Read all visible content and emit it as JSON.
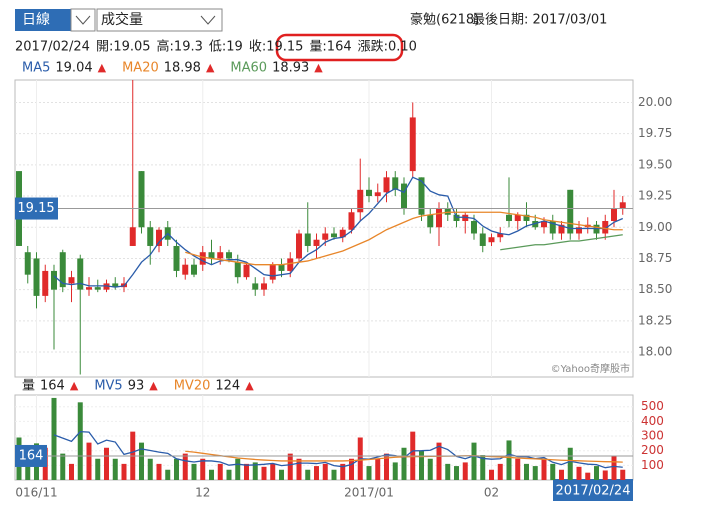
{
  "header": {
    "period": "日線",
    "indicator": "成交量",
    "stock": "豪勉(6218)",
    "last_date": "最後日期: 2017/03/01",
    "info": [
      "2017/02/24",
      "開:19.05",
      "高:19.3",
      "低:19",
      "收:19.15",
      "量:164",
      "漲跌:0.10"
    ],
    "watermark": "©Yahoo奇摩股市"
  },
  "chart_data": {
    "type": "candlestick",
    "trend_symbol": "▲",
    "up_color": "#e02a2a",
    "down_color": "#3a8a3a",
    "flat_color": "#777777",
    "categories": [
      null,
      null,
      "016/11",
      null,
      null,
      null,
      null,
      null,
      null,
      null,
      null,
      null,
      null,
      null,
      null,
      null,
      null,
      null,
      null,
      null,
      null,
      "12",
      null,
      null,
      null,
      null,
      null,
      null,
      null,
      null,
      null,
      null,
      null,
      null,
      null,
      null,
      null,
      null,
      null,
      null,
      "2017/01",
      null,
      null,
      null,
      null,
      null,
      null,
      null,
      null,
      null,
      null,
      null,
      null,
      null,
      "02",
      null,
      null,
      null,
      null,
      null,
      null,
      null,
      null,
      null,
      null,
      null,
      null,
      null,
      "2017/02/24",
      null
    ],
    "open": [
      19.45,
      18.8,
      18.75,
      18.45,
      18.65,
      18.8,
      18.55,
      18.75,
      18.5,
      18.52,
      18.5,
      18.55,
      18.52,
      18.85,
      19.45,
      19.0,
      18.85,
      19.0,
      18.85,
      18.62,
      18.7,
      18.7,
      18.8,
      18.75,
      18.8,
      18.72,
      18.6,
      18.55,
      18.5,
      18.58,
      18.7,
      18.65,
      18.75,
      18.95,
      18.85,
      18.9,
      18.95,
      18.92,
      18.98,
      19.12,
      19.3,
      19.25,
      19.28,
      19.4,
      19.35,
      19.45,
      19.4,
      19.1,
      19.0,
      19.15,
      19.1,
      19.05,
      19.05,
      18.95,
      18.88,
      18.92,
      19.1,
      19.05,
      19.1,
      19.05,
      19.0,
      19.05,
      18.95,
      19.3,
      18.95,
      19.0,
      19.02,
      18.95,
      19.05,
      19.15
    ],
    "high": [
      19.45,
      18.85,
      18.8,
      18.7,
      18.7,
      18.82,
      18.65,
      18.78,
      18.6,
      18.58,
      18.58,
      18.6,
      18.6,
      20.18,
      19.45,
      19.05,
      19.0,
      19.05,
      18.9,
      18.75,
      18.75,
      18.85,
      18.9,
      18.85,
      18.82,
      18.78,
      18.72,
      18.6,
      18.6,
      18.72,
      18.75,
      18.8,
      18.98,
      19.2,
      18.95,
      19.0,
      19.0,
      19.0,
      19.15,
      19.55,
      19.4,
      19.35,
      19.45,
      19.45,
      19.4,
      20.0,
      19.4,
      19.15,
      19.2,
      19.2,
      19.15,
      19.12,
      19.1,
      19.0,
      18.95,
      19.0,
      19.4,
      19.12,
      19.2,
      19.1,
      19.08,
      19.1,
      19.05,
      19.3,
      19.05,
      19.08,
      19.05,
      19.1,
      19.3,
      19.25
    ],
    "low": [
      18.85,
      18.55,
      18.35,
      18.4,
      18.02,
      18.48,
      18.4,
      17.82,
      18.45,
      18.48,
      18.48,
      18.5,
      18.48,
      18.85,
      18.95,
      18.7,
      18.8,
      18.85,
      18.6,
      18.58,
      18.6,
      18.65,
      18.7,
      18.7,
      18.72,
      18.55,
      18.58,
      18.45,
      18.45,
      18.55,
      18.6,
      18.6,
      18.72,
      18.8,
      18.75,
      18.85,
      18.9,
      18.88,
      18.95,
      19.05,
      19.2,
      19.2,
      19.2,
      19.25,
      19.1,
      19.4,
      19.05,
      18.95,
      18.85,
      19.05,
      19.0,
      18.95,
      18.9,
      18.8,
      18.85,
      18.88,
      19.0,
      18.98,
      19.0,
      18.98,
      18.95,
      18.9,
      18.9,
      18.9,
      18.9,
      18.95,
      18.9,
      18.9,
      19.0,
      19.1
    ],
    "close": [
      18.85,
      18.62,
      18.45,
      18.65,
      18.5,
      18.52,
      18.6,
      18.5,
      18.52,
      18.5,
      18.55,
      18.52,
      18.55,
      19.0,
      19.0,
      18.85,
      18.98,
      18.9,
      18.65,
      18.7,
      18.62,
      18.8,
      18.75,
      18.8,
      18.75,
      18.6,
      18.7,
      18.5,
      18.55,
      18.7,
      18.65,
      18.75,
      18.95,
      18.85,
      18.9,
      18.95,
      18.92,
      18.98,
      19.12,
      19.3,
      19.25,
      19.28,
      19.4,
      19.3,
      19.15,
      19.88,
      19.1,
      19.0,
      19.15,
      19.1,
      19.05,
      19.1,
      18.95,
      18.85,
      18.92,
      18.95,
      19.05,
      19.1,
      19.05,
      19.0,
      19.05,
      18.95,
      19.02,
      18.95,
      19.0,
      19.02,
      18.95,
      19.05,
      19.15,
      19.2
    ],
    "ylim": [
      17.8,
      20.18
    ],
    "yticks": [
      {
        "value": 18,
        "label": "18.00"
      },
      {
        "value": 18.25,
        "label": "18.25"
      },
      {
        "value": 18.5,
        "label": "18.50"
      },
      {
        "value": 18.75,
        "label": "18.75"
      },
      {
        "value": 19,
        "label": "19.00"
      },
      {
        "value": 19.25,
        "label": "19.25"
      },
      {
        "value": 19.5,
        "label": "19.50"
      },
      {
        "value": 19.75,
        "label": "19.75"
      },
      {
        "value": 20,
        "label": "20.00"
      }
    ],
    "series": [
      {
        "name": "MA5",
        "color": "#2a5caa",
        "values": [
          null,
          null,
          null,
          null,
          18.61,
          18.55,
          18.54,
          18.55,
          18.53,
          18.53,
          18.53,
          18.52,
          18.53,
          18.62,
          18.72,
          18.78,
          18.88,
          18.95,
          18.88,
          18.82,
          18.77,
          18.73,
          18.7,
          18.73,
          18.74,
          18.74,
          18.72,
          18.67,
          18.62,
          18.61,
          18.62,
          18.63,
          18.72,
          18.78,
          18.82,
          18.88,
          18.91,
          18.92,
          18.97,
          19.05,
          19.11,
          19.19,
          19.27,
          19.31,
          19.28,
          19.4,
          19.37,
          19.29,
          19.26,
          19.25,
          19.08,
          19.08,
          19.07,
          19.01,
          18.97,
          18.95,
          18.94,
          18.97,
          19.01,
          19.03,
          19.05,
          19.03,
          19.01,
          18.99,
          18.99,
          18.99,
          18.99,
          18.99,
          19.04,
          19.07
        ]
      },
      {
        "name": "MA20",
        "color": "#e8862a",
        "values": [
          null,
          null,
          null,
          null,
          null,
          null,
          null,
          null,
          null,
          null,
          null,
          null,
          null,
          null,
          null,
          null,
          null,
          null,
          null,
          18.8,
          18.78,
          18.76,
          18.75,
          18.74,
          18.73,
          18.72,
          18.71,
          18.7,
          18.7,
          18.7,
          18.7,
          18.71,
          18.72,
          18.73,
          18.75,
          18.77,
          18.79,
          18.81,
          18.84,
          18.87,
          18.9,
          18.94,
          18.98,
          19.01,
          19.04,
          19.07,
          19.09,
          19.1,
          19.11,
          19.12,
          19.12,
          19.12,
          19.12,
          19.12,
          19.12,
          19.12,
          19.11,
          19.1,
          19.09,
          19.08,
          19.06,
          19.05,
          19.04,
          19.03,
          19.02,
          19.01,
          19.0,
          18.99,
          18.98,
          18.98
        ]
      },
      {
        "name": "MA60",
        "color": "#5a9a5a",
        "values": [
          null,
          null,
          null,
          null,
          null,
          null,
          null,
          null,
          null,
          null,
          null,
          null,
          null,
          null,
          null,
          null,
          null,
          null,
          null,
          null,
          null,
          null,
          null,
          null,
          null,
          null,
          null,
          null,
          null,
          null,
          null,
          null,
          null,
          null,
          null,
          null,
          null,
          null,
          null,
          null,
          null,
          null,
          null,
          null,
          null,
          null,
          null,
          null,
          null,
          null,
          null,
          null,
          null,
          null,
          null,
          18.82,
          18.83,
          18.84,
          18.85,
          18.86,
          18.86,
          18.87,
          18.88,
          18.89,
          18.89,
          18.9,
          18.91,
          18.92,
          18.93,
          18.94
        ]
      }
    ],
    "volume": {
      "name": "量",
      "ylim": [
        0,
        580
      ],
      "yticks": [
        100,
        200,
        300,
        400,
        500
      ],
      "tick_color": "#cc3333",
      "values": [
        290,
        220,
        250,
        220,
        560,
        180,
        110,
        530,
        255,
        145,
        220,
        145,
        110,
        330,
        255,
        145,
        110,
        70,
        145,
        180,
        110,
        145,
        70,
        110,
        70,
        145,
        110,
        120,
        90,
        110,
        70,
        180,
        145,
        70,
        95,
        110,
        70,
        110,
        145,
        290,
        95,
        145,
        180,
        120,
        220,
        330,
        200,
        145,
        255,
        110,
        95,
        120,
        255,
        170,
        70,
        110,
        270,
        145,
        110,
        95,
        145,
        110,
        70,
        220,
        90,
        50,
        95,
        65,
        164,
        70
      ],
      "series": [
        {
          "name": "MV5",
          "color": "#2a5caa",
          "values": [
            null,
            null,
            null,
            null,
            308,
            286,
            264,
            330,
            327,
            246,
            272,
            259,
            175,
            190,
            212,
            201,
            190,
            182,
            145,
            131,
            123,
            131,
            130,
            123,
            101,
            108,
            101,
            103,
            107,
            113,
            98,
            104,
            115,
            115,
            112,
            120,
            98,
            91,
            106,
            145,
            142,
            157,
            173,
            166,
            152,
            199,
            200,
            203,
            230,
            208,
            161,
            145,
            165,
            147,
            142,
            145,
            175,
            160,
            159,
            146,
            153,
            121,
            105,
            128,
            117,
            108,
            105,
            84,
            93,
            87
          ]
        },
        {
          "name": "MV20",
          "color": "#e8862a",
          "values": [
            null,
            null,
            null,
            null,
            null,
            null,
            null,
            null,
            null,
            null,
            null,
            null,
            null,
            null,
            null,
            null,
            null,
            null,
            null,
            196,
            190,
            182,
            174,
            166,
            158,
            150,
            145,
            140,
            136,
            133,
            130,
            130,
            130,
            130,
            130,
            130,
            130,
            130,
            132,
            136,
            140,
            145,
            150,
            155,
            158,
            160,
            160,
            161,
            162,
            163,
            164,
            165,
            165,
            163,
            160,
            157,
            154,
            150,
            147,
            144,
            141,
            138,
            135,
            133,
            131,
            129,
            127,
            125,
            124,
            122
          ]
        }
      ]
    }
  }
}
